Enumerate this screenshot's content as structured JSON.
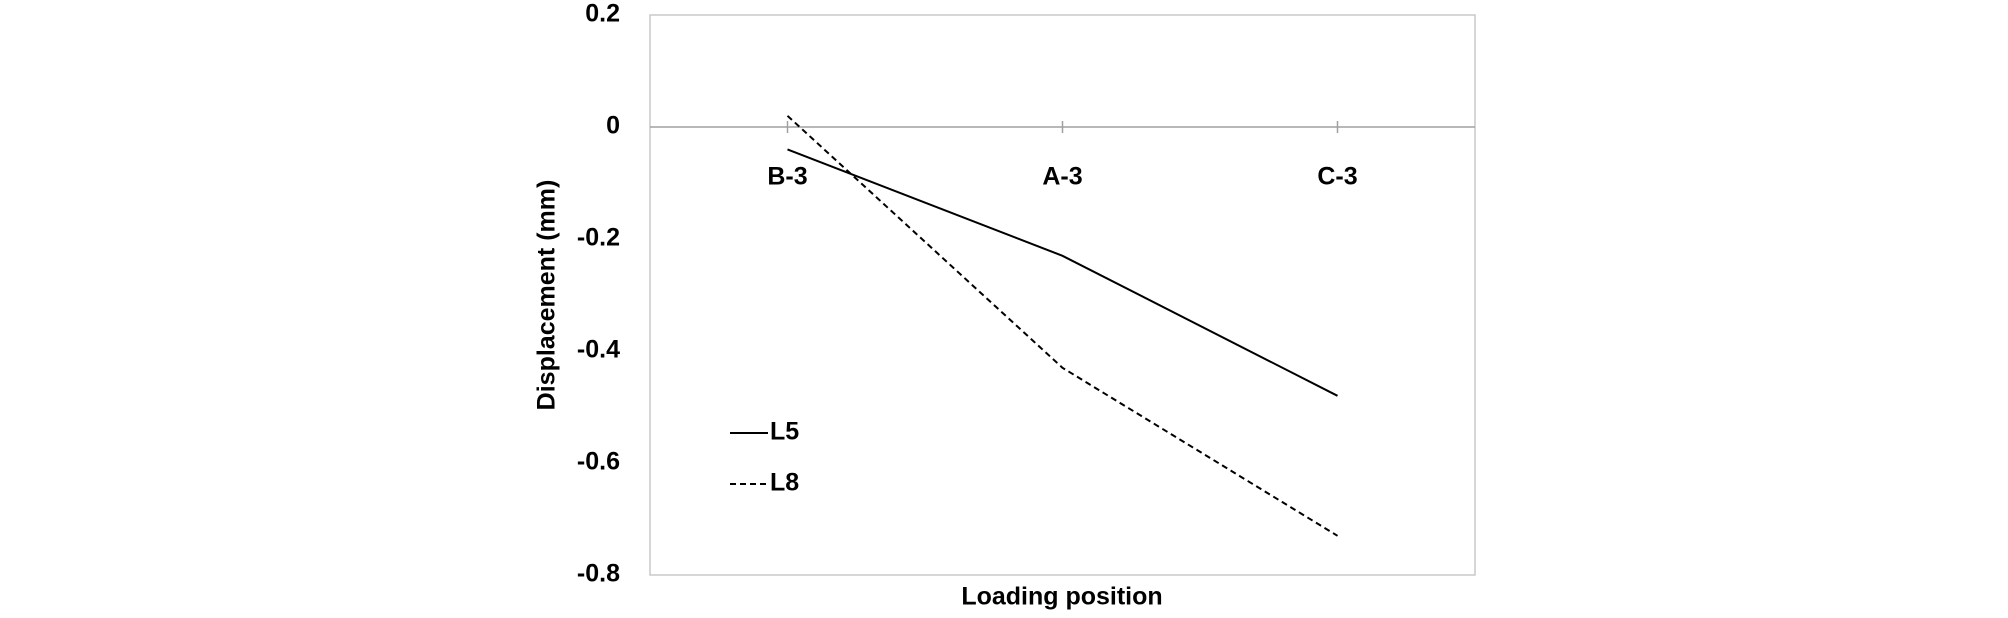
{
  "chart_data": {
    "type": "line",
    "x_label": "Loading position",
    "y_label": "Displacement (mm)",
    "categories": [
      "B-3",
      "A-3",
      "C-3"
    ],
    "series": [
      {
        "name": "L5",
        "color": "#000000",
        "style": "solid",
        "values": [
          -0.04,
          -0.23,
          -0.48
        ]
      },
      {
        "name": "L8",
        "color": "#000000",
        "style": "dashed",
        "values": [
          0.02,
          -0.43,
          -0.73
        ]
      }
    ],
    "ylim": [
      -0.8,
      0.2
    ],
    "yticks": [
      -0.8,
      -0.6,
      -0.4,
      -0.2,
      0,
      0.2
    ],
    "grid": false,
    "legend": "lower left"
  }
}
